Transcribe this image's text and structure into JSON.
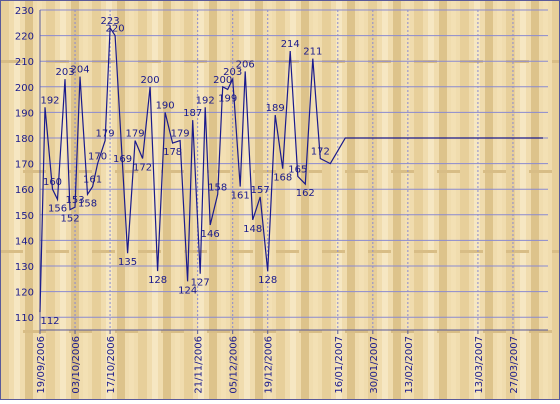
{
  "colors": {
    "line": "#1a1a8c",
    "grid": "#8a8ad0",
    "text": "#1a1a8c",
    "frame": "#5a5a9a",
    "wood_light": "#f3e2b8",
    "wood_dark": "#dcc38e"
  },
  "chart_data": {
    "type": "line",
    "title": "",
    "xlabel": "",
    "ylabel": "",
    "ylim": [
      105,
      230
    ],
    "yticks": [
      110,
      120,
      130,
      140,
      150,
      160,
      170,
      180,
      190,
      200,
      210,
      220,
      230
    ],
    "grid": true,
    "legend": "none",
    "date_range": [
      "19/09/2006",
      "10/04/2007"
    ],
    "xtick_labels": [
      "19/09/2006",
      "03/10/2006",
      "17/10/2006",
      "21/11/2006",
      "05/12/2006",
      "19/12/2006",
      "16/01/2007",
      "30/01/2007",
      "13/02/2007",
      "13/03/2007",
      "27/03/2007"
    ],
    "xtick_dates": [
      "2006-09-19",
      "2006-10-03",
      "2006-10-17",
      "2006-11-21",
      "2006-12-05",
      "2006-12-19",
      "2007-01-16",
      "2007-01-30",
      "2007-02-13",
      "2007-03-13",
      "2007-03-27"
    ],
    "series": [
      {
        "x": [
          "2006-09-19",
          "2006-09-21",
          "2006-09-24",
          "2006-09-26",
          "2006-09-29",
          "2006-10-01",
          "2006-10-03",
          "2006-10-05",
          "2006-10-08",
          "2006-10-10",
          "2006-10-12",
          "2006-10-15",
          "2006-10-17",
          "2006-10-19",
          "2006-10-22",
          "2006-10-24",
          "2006-10-27",
          "2006-10-30",
          "2006-11-02",
          "2006-11-05",
          "2006-11-08",
          "2006-11-11",
          "2006-11-14",
          "2006-11-17",
          "2006-11-19",
          "2006-11-22",
          "2006-11-24",
          "2006-11-26",
          "2006-11-29",
          "2006-12-01",
          "2006-12-03",
          "2006-12-05",
          "2006-12-08",
          "2006-12-10",
          "2006-12-13",
          "2006-12-16",
          "2006-12-19",
          "2006-12-22",
          "2006-12-25",
          "2006-12-28",
          "2006-12-31",
          "2007-01-03",
          "2007-01-06",
          "2007-01-09",
          "2007-01-13",
          "2007-01-16",
          "2007-01-19",
          "2007-01-22",
          "2007-01-25",
          "2007-01-28",
          "2007-01-31",
          "2007-02-03",
          "2007-02-06",
          "2007-02-09",
          "2007-02-12",
          "2007-02-15",
          "2007-02-18",
          "2007-02-21",
          "2007-02-24",
          "2007-02-27",
          "2007-03-02",
          "2007-03-05",
          "2007-03-08",
          "2007-03-12",
          "2007-03-15",
          "2007-03-18",
          "2007-03-21",
          "2007-03-24",
          "2007-03-27",
          "2007-03-30",
          "2007-04-02",
          "2007-04-05",
          "2007-04-08"
        ],
        "y": [
          112,
          192,
          160,
          156,
          203,
          152,
          153,
          204,
          158,
          161,
          170,
          179,
          223,
          220,
          169,
          135,
          179,
          172,
          200,
          128,
          190,
          178,
          179,
          124,
          187,
          127,
          192,
          146,
          158,
          200,
          199,
          203,
          161,
          206,
          148,
          157,
          128,
          189,
          168,
          214,
          165,
          162,
          211,
          172,
          170,
          175,
          180,
          180,
          180,
          180,
          180,
          180,
          180,
          180,
          180,
          180,
          180,
          180,
          180,
          180,
          180,
          180,
          180,
          180,
          180,
          180,
          180,
          180,
          180,
          180,
          180,
          180,
          180
        ]
      }
    ],
    "data_labels": [
      "112",
      "192",
      "160",
      "156",
      "203",
      "152",
      "153",
      "204",
      "158",
      "161",
      "170",
      "179",
      "223",
      "220",
      "169",
      "135",
      "179",
      "172",
      "200",
      "128",
      "190",
      "178",
      "179",
      "124",
      "187",
      "127",
      "192",
      "146",
      "158",
      "200",
      "199",
      "203",
      "161",
      "206",
      "148",
      "157",
      "128",
      "189",
      "168",
      "214",
      "165",
      "162",
      "211",
      "172"
    ]
  }
}
